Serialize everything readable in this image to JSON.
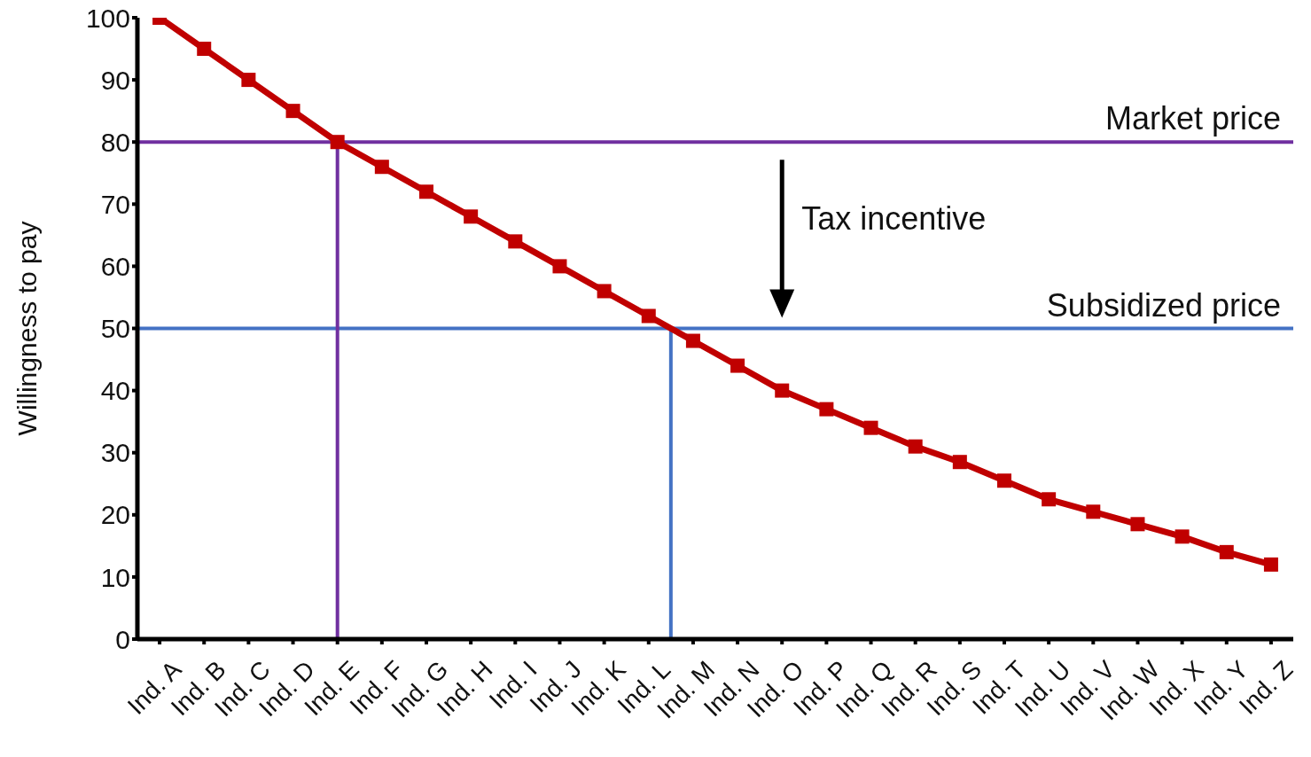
{
  "chart_data": {
    "type": "line",
    "ylabel": "Willingness to pay",
    "categories": [
      "Ind. A",
      "Ind. B",
      "Ind. C",
      "Ind. D",
      "Ind. E",
      "Ind. F",
      "Ind. G",
      "Ind. H",
      "Ind. I",
      "Ind. J",
      "Ind. K",
      "Ind. L",
      "Ind. M",
      "Ind. N",
      "Ind. O",
      "Ind. P",
      "Ind. Q",
      "Ind. R",
      "Ind. S",
      "Ind. T",
      "Ind. U",
      "Ind. V",
      "Ind. W",
      "Ind. X",
      "Ind. Y",
      "Ind. Z"
    ],
    "series": [
      {
        "color": "#c00000",
        "values": [
          100,
          95,
          90,
          85,
          80,
          76,
          72,
          68,
          64,
          60,
          56,
          52,
          48,
          44,
          40,
          37,
          34,
          31,
          28.5,
          25.5,
          22.5,
          20.5,
          18.5,
          16.5,
          14,
          12
        ]
      }
    ],
    "ylim": [
      0,
      100
    ],
    "yticks": [
      0,
      10,
      20,
      30,
      40,
      50,
      60,
      70,
      80,
      90,
      100
    ],
    "marker": "square",
    "grid": false,
    "ref_lines": [
      {
        "axis": "y",
        "value": 80,
        "label": "Market price",
        "color": "#7030a0"
      },
      {
        "axis": "y",
        "value": 50,
        "label": "Subsidized price",
        "color": "#4472c4"
      },
      {
        "axis": "x",
        "value": "Ind. E",
        "label": null,
        "color": "#7030a0"
      },
      {
        "axis": "x",
        "value": "Ind. M",
        "label": null,
        "color": "#4472c4"
      }
    ],
    "annotations": [
      "Tax incentive"
    ]
  }
}
